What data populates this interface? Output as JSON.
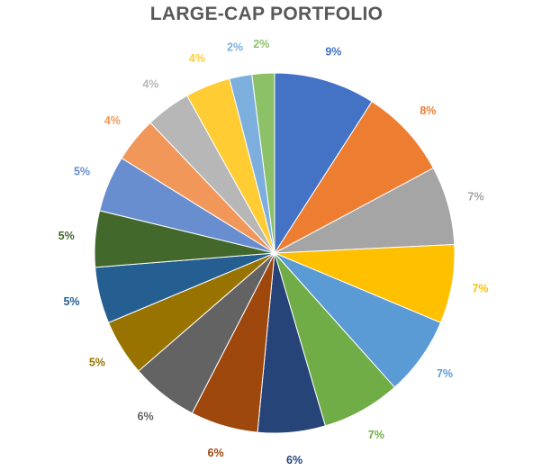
{
  "chart_data": {
    "type": "pie",
    "title": "LARGE-CAP PORTFOLIO",
    "start_angle_deg": 0,
    "direction": "clockwise",
    "legend": "none",
    "slices": [
      {
        "value": 9,
        "label": "9%",
        "color": "#4472C4"
      },
      {
        "value": 8,
        "label": "8%",
        "color": "#ED7D31"
      },
      {
        "value": 7,
        "label": "7%",
        "color": "#A5A5A5"
      },
      {
        "value": 7,
        "label": "7%",
        "color": "#FFC000"
      },
      {
        "value": 7,
        "label": "7%",
        "color": "#5B9BD5"
      },
      {
        "value": 7,
        "label": "7%",
        "color": "#70AD47"
      },
      {
        "value": 6,
        "label": "6%",
        "color": "#264478"
      },
      {
        "value": 6,
        "label": "6%",
        "color": "#9E480E"
      },
      {
        "value": 6,
        "label": "6%",
        "color": "#636363"
      },
      {
        "value": 5,
        "label": "5%",
        "color": "#997300"
      },
      {
        "value": 5,
        "label": "5%",
        "color": "#255E91"
      },
      {
        "value": 5,
        "label": "5%",
        "color": "#43682B"
      },
      {
        "value": 5,
        "label": "5%",
        "color": "#698ED0"
      },
      {
        "value": 4,
        "label": "4%",
        "color": "#F1975A"
      },
      {
        "value": 4,
        "label": "4%",
        "color": "#B7B7B7"
      },
      {
        "value": 4,
        "label": "4%",
        "color": "#FFCD33"
      },
      {
        "value": 2,
        "label": "2%",
        "color": "#7CAFDD"
      },
      {
        "value": 2,
        "label": "2%",
        "color": "#8CC168"
      }
    ]
  }
}
